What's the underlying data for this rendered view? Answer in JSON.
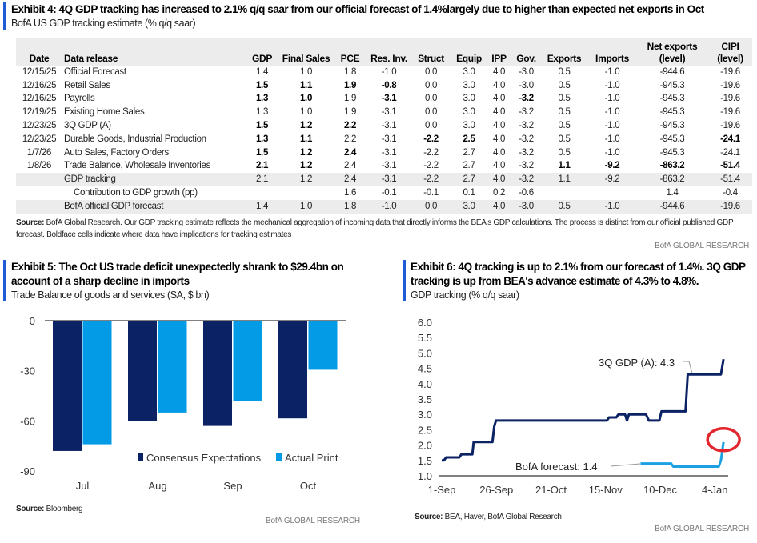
{
  "exhibit4": {
    "title": "Exhibit 4: 4Q GDP tracking has increased to 2.1% q/q saar from our official forecast of 1.4%largely due to higher than expected net exports in Oct",
    "subtitle": "BofA US GDP tracking estimate (% q/q saar)",
    "columns": [
      "Date",
      "Data release",
      "GDP",
      "Final Sales",
      "PCE",
      "Res. Inv.",
      "Struct",
      "Equip",
      "IPP",
      "Gov.",
      "Exports",
      "Imports",
      "Net exports\n(level)",
      "CIPI\n(level)"
    ],
    "rows": [
      {
        "date": "12/15/25",
        "release": "Official Forecast",
        "values": [
          "1.4",
          "1.0",
          "1.8",
          "-1.0",
          "0.0",
          "3.0",
          "4.0",
          "-3.0",
          "0.5",
          "-1.0",
          "-944.6",
          "-19.6"
        ],
        "bold": []
      },
      {
        "date": "12/16/25",
        "release": "Retail Sales",
        "values": [
          "1.5",
          "1.1",
          "1.9",
          "-0.8",
          "0.0",
          "3.0",
          "4.0",
          "-3.0",
          "0.5",
          "-1.0",
          "-945.3",
          "-19.6"
        ],
        "bold": [
          0,
          1,
          2,
          3
        ]
      },
      {
        "date": "12/16/25",
        "release": "Payrolls",
        "values": [
          "1.3",
          "1.0",
          "1.9",
          "-3.1",
          "0.0",
          "3.0",
          "4.0",
          "-3.2",
          "0.5",
          "-1.0",
          "-945.3",
          "-19.6"
        ],
        "bold": [
          0,
          1,
          3,
          7
        ]
      },
      {
        "date": "12/19/25",
        "release": "Existing Home Sales",
        "values": [
          "1.3",
          "1.0",
          "1.9",
          "-3.1",
          "0.0",
          "3.0",
          "4.0",
          "-3.2",
          "0.5",
          "-1.0",
          "-945.3",
          "-19.6"
        ],
        "bold": []
      },
      {
        "date": "12/23/25",
        "release": "3Q GDP (A)",
        "values": [
          "1.5",
          "1.2",
          "2.2",
          "-3.1",
          "0.0",
          "3.0",
          "4.0",
          "-3.2",
          "0.5",
          "-1.0",
          "-945.3",
          "-19.6"
        ],
        "bold": [
          0,
          1,
          2
        ]
      },
      {
        "date": "12/23/25",
        "release": "Durable Goods, Industrial Production",
        "values": [
          "1.3",
          "1.1",
          "2.2",
          "-3.1",
          "-2.2",
          "2.5",
          "4.0",
          "-3.2",
          "0.5",
          "-1.0",
          "-945.3",
          "-24.1"
        ],
        "bold": [
          0,
          1,
          4,
          5,
          11
        ]
      },
      {
        "date": "1/7/26",
        "release": "Auto Sales, Factory Orders",
        "values": [
          "1.5",
          "1.2",
          "2.4",
          "-3.1",
          "-2.2",
          "2.7",
          "4.0",
          "-3.2",
          "0.5",
          "-1.0",
          "-945.3",
          "-24.1"
        ],
        "bold": [
          0,
          1,
          2
        ]
      },
      {
        "date": "1/8/26",
        "release": "Trade Balance, Wholesale Inventories",
        "values": [
          "2.1",
          "1.2",
          "2.4",
          "-3.1",
          "-2.2",
          "2.7",
          "4.0",
          "-3.2",
          "1.1",
          "-9.2",
          "-863.2",
          "-51.4"
        ],
        "bold": [
          0,
          1,
          8,
          9,
          10,
          11
        ]
      },
      {
        "date": "",
        "release": "GDP tracking",
        "values": [
          "2.1",
          "1.2",
          "2.4",
          "-3.1",
          "-2.2",
          "2.7",
          "4.0",
          "-3.2",
          "1.1",
          "-9.2",
          "-863.2",
          "-51.4"
        ],
        "bold": [],
        "gray": true
      },
      {
        "date": "",
        "release": "Contribution to GDP growth (pp)",
        "values": [
          "",
          "",
          "1.6",
          "-0.1",
          "-0.1",
          "0.1",
          "0.2",
          "-0.6",
          "",
          "",
          "1.4",
          "-0.4"
        ],
        "bold": [],
        "indent": true
      },
      {
        "date": "",
        "release": "BofA official GDP forecast",
        "values": [
          "1.4",
          "1.0",
          "1.8",
          "-1.0",
          "0.0",
          "3.0",
          "4.0",
          "-3.0",
          "0.5",
          "-1.0",
          "-944.6",
          "-19.6"
        ],
        "bold": [],
        "gray": true
      }
    ],
    "source_label": "Source:",
    "source_text": "BofA Global Research. Our GDP tracking estimate reflects the mechanical aggregation of incoming data that directly informs the BEA's GDP calculations. The process is distinct from our official published GDP forecast. Boldface cells indicate where data have implications for tracking estimates",
    "brand": "BofA GLOBAL RESEARCH"
  },
  "exhibit5": {
    "title": "Exhibit 5: The Oct US trade deficit unexpectedly shrank to $29.4bn on account of a sharp decline in imports",
    "subtitle": "Trade Balance of goods and services (SA, $ bn)",
    "source_label": "Source:",
    "source_text": "Bloomberg",
    "brand": "BofA GLOBAL RESEARCH"
  },
  "exhibit6": {
    "title": "Exhibit 6: 4Q tracking is up to 2.1% from our forecast of 1.4%. 3Q GDP tracking is up from BEA's advance estimate of 4.3% to 4.8%.",
    "subtitle": "GDP tracking (% q/q saar)",
    "source_label": "Source:",
    "source_text": "BEA, Haver, BofA Global Research",
    "brand": "BofA GLOBAL RESEARCH"
  },
  "chart_data": [
    {
      "type": "bar",
      "title": "Trade Balance of goods and services (SA, $ bn)",
      "categories": [
        "Jul",
        "Aug",
        "Sep",
        "Oct"
      ],
      "series": [
        {
          "name": "Consensus Expectations",
          "color": "#0b2265",
          "values": [
            -78,
            -60,
            -63,
            -58.5
          ]
        },
        {
          "name": "Actual Print",
          "color": "#039be5",
          "values": [
            -74,
            -55,
            -48,
            -29.4
          ]
        }
      ],
      "ylim": [
        -90,
        0
      ],
      "yticks": [
        "0",
        "-30",
        "-60",
        "-90"
      ],
      "ytick_values": [
        0,
        -30,
        -60,
        -90
      ],
      "legend": "bottom-right"
    },
    {
      "type": "line",
      "title": "GDP tracking (% q/q saar)",
      "x_unit": "days since 1-Sep",
      "xticks": [
        "1-Sep",
        "26-Sep",
        "21-Oct",
        "15-Nov",
        "10-Dec",
        "4-Jan"
      ],
      "xtick_values": [
        0,
        25,
        50,
        75,
        100,
        125
      ],
      "yticks": [
        "6.0",
        "5.5",
        "5.0",
        "4.5",
        "4.0",
        "3.5",
        "3.0",
        "2.5",
        "2.0",
        "1.5",
        "1.0"
      ],
      "ylim": [
        1.0,
        6.0
      ],
      "series": [
        {
          "name": "3Q GDP tracking",
          "color": "#0b2265",
          "annotation": "3Q GDP (A): 4.3",
          "points": [
            [
              0,
              1.5
            ],
            [
              1,
              1.5
            ],
            [
              2,
              1.6
            ],
            [
              8,
              1.6
            ],
            [
              9,
              1.7
            ],
            [
              14,
              1.7
            ],
            [
              14.6,
              2.1
            ],
            [
              23.2,
              2.1
            ],
            [
              24,
              2.6
            ],
            [
              24.8,
              2.8
            ],
            [
              75.6,
              2.8
            ],
            [
              76.6,
              2.9
            ],
            [
              79.9,
              2.9
            ],
            [
              80.9,
              3.0
            ],
            [
              83.9,
              3.0
            ],
            [
              84.8,
              2.8
            ],
            [
              85.7,
              3.0
            ],
            [
              93.5,
              3.0
            ],
            [
              94.8,
              2.8
            ],
            [
              99.6,
              2.8
            ],
            [
              100.6,
              3.1
            ],
            [
              111.6,
              3.1
            ],
            [
              112.6,
              4.3
            ],
            [
              127.8,
              4.3
            ],
            [
              129,
              4.8
            ]
          ]
        },
        {
          "name": "4Q GDP tracking",
          "color": "#1ba1e2",
          "annotation": "BofA forecast: 1.4",
          "points": [
            [
              91,
              1.4
            ],
            [
              105,
              1.4
            ],
            [
              106,
              1.3
            ],
            [
              126.8,
              1.3
            ],
            [
              127.8,
              1.5
            ],
            [
              129,
              2.1
            ]
          ]
        }
      ],
      "highlight_point": [
        129,
        2.1
      ],
      "highlight_color": "#e3262d"
    }
  ]
}
